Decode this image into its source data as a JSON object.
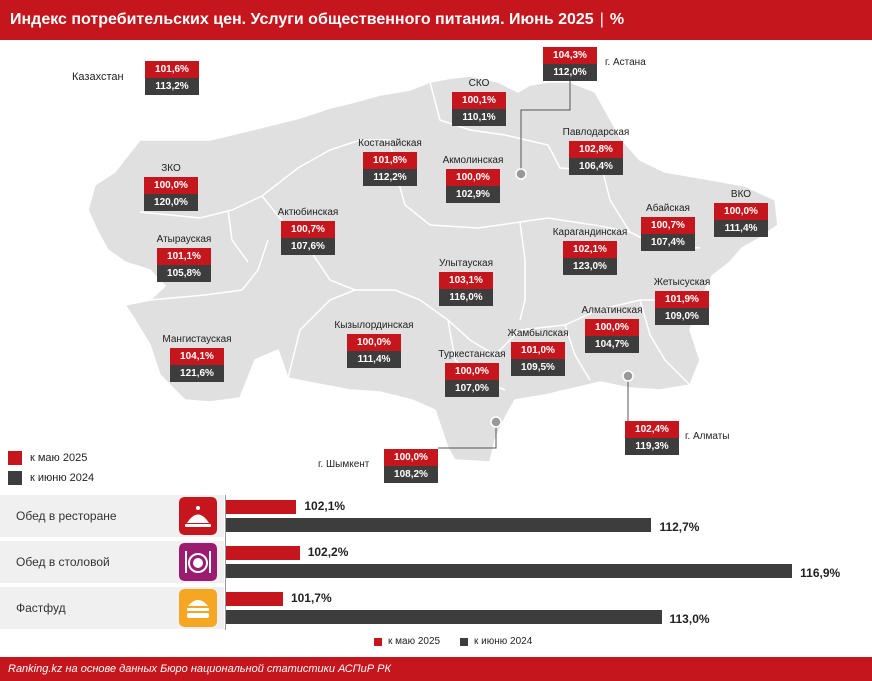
{
  "header": {
    "title": "Индекс потребительских цен. Услуги общественного питания. Июнь 2025",
    "unit": "%"
  },
  "colors": {
    "may": "#c4161c",
    "june": "#3d3d3d",
    "map": "#e0e0e0"
  },
  "map_legend": {
    "may": "к маю 2025",
    "june": "к июню 2024"
  },
  "kazakhstan": {
    "name": "Казахстан",
    "may": "101,6%",
    "june": "113,2%"
  },
  "regions": [
    {
      "name": "СКО",
      "may": "100,1%",
      "june": "110,1%"
    },
    {
      "name": "Костанайская",
      "may": "101,8%",
      "june": "112,2%"
    },
    {
      "name": "Акмолинская",
      "may": "100,0%",
      "june": "102,9%"
    },
    {
      "name": "Павлодарская",
      "may": "102,8%",
      "june": "106,4%"
    },
    {
      "name": "ЗКО",
      "may": "100,0%",
      "june": "120,0%"
    },
    {
      "name": "Актюбинская",
      "may": "100,7%",
      "june": "107,6%"
    },
    {
      "name": "Абайская",
      "may": "100,7%",
      "june": "107,4%"
    },
    {
      "name": "ВКО",
      "may": "100,0%",
      "june": "111,4%"
    },
    {
      "name": "Атырауская",
      "may": "101,1%",
      "june": "105,8%"
    },
    {
      "name": "Карагандинская",
      "may": "102,1%",
      "june": "123,0%"
    },
    {
      "name": "Улытауская",
      "may": "103,1%",
      "june": "116,0%"
    },
    {
      "name": "Жетысуская",
      "may": "101,9%",
      "june": "109,0%"
    },
    {
      "name": "Алматинская",
      "may": "100,0%",
      "june": "104,7%"
    },
    {
      "name": "Мангистауская",
      "may": "104,1%",
      "june": "121,6%"
    },
    {
      "name": "Кызылординская",
      "may": "100,0%",
      "june": "111,4%"
    },
    {
      "name": "Жамбылская",
      "may": "101,0%",
      "june": "109,5%"
    },
    {
      "name": "Туркестанская",
      "may": "100,0%",
      "june": "107,0%"
    }
  ],
  "cities": [
    {
      "name": "г. Астана",
      "may": "104,3%",
      "june": "112,0%"
    },
    {
      "name": "г. Алматы",
      "may": "102,4%",
      "june": "119,3%"
    },
    {
      "name": "г. Шымкент",
      "may": "100,0%",
      "june": "108,2%"
    }
  ],
  "chart_data": {
    "type": "bar",
    "orientation": "horizontal",
    "categories": [
      "Обед в ресторане",
      "Обед в столовой",
      "Фастфуд"
    ],
    "series": [
      {
        "name": "к маю 2025",
        "values": [
          102.1,
          102.2,
          101.7
        ]
      },
      {
        "name": "к июню 2024",
        "values": [
          112.7,
          116.9,
          113.0
        ]
      }
    ],
    "value_labels": [
      [
        "102,1%",
        "102,2%",
        "101,7%"
      ],
      [
        "112,7%",
        "116,9%",
        "113,0%"
      ]
    ],
    "icons": [
      "restaurant-cloche-icon",
      "plate-cutlery-icon",
      "burger-icon"
    ],
    "icon_colors": [
      "#c4161c",
      "#9b1c6e",
      "#f5a623"
    ],
    "legend": "bottom-center"
  },
  "bar_legend": {
    "may": "к маю 2025",
    "june": "к июню 2024"
  },
  "footer": {
    "source": "Ranking.kz на основе данных Бюро национальной статистики АСПиР РК"
  }
}
